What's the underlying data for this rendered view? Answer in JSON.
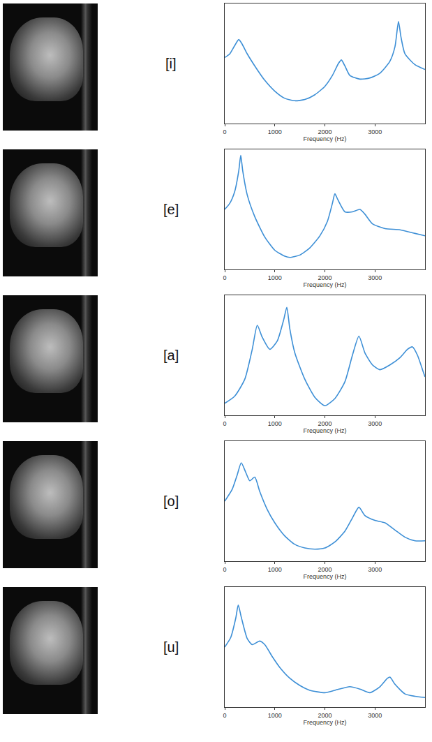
{
  "chart_data": [
    {
      "type": "line",
      "title": "[i]",
      "xlabel": "Frequency (Hz)",
      "color": "#3d8fd6",
      "grid": false,
      "tick_labels": "x",
      "xlim": [
        0,
        4000
      ],
      "xticks": [
        0,
        1000,
        2000,
        3000
      ],
      "ylim": [
        0,
        100
      ],
      "x": [
        0,
        100,
        200,
        280,
        350,
        450,
        600,
        800,
        1000,
        1200,
        1400,
        1600,
        1800,
        2000,
        2150,
        2270,
        2330,
        2400,
        2500,
        2700,
        2900,
        3100,
        3300,
        3400,
        3470,
        3520,
        3600,
        3800,
        4000
      ],
      "values": [
        55,
        58,
        65,
        70,
        66,
        58,
        48,
        36,
        27,
        21,
        19,
        20,
        24,
        31,
        40,
        50,
        53,
        48,
        40,
        37,
        38,
        42,
        52,
        64,
        85,
        72,
        58,
        49,
        45
      ]
    },
    {
      "type": "line",
      "title": "[e]",
      "xlabel": "Frequency (Hz)",
      "color": "#3d8fd6",
      "grid": false,
      "tick_labels": "x",
      "xlim": [
        0,
        4000
      ],
      "xticks": [
        0,
        1000,
        2000,
        3000
      ],
      "ylim": [
        0,
        100
      ],
      "x": [
        0,
        100,
        200,
        280,
        320,
        360,
        450,
        600,
        800,
        1000,
        1200,
        1300,
        1500,
        1700,
        1900,
        2050,
        2150,
        2200,
        2260,
        2400,
        2550,
        2700,
        2800,
        2950,
        3200,
        3500,
        3800,
        4000
      ],
      "values": [
        50,
        55,
        65,
        82,
        95,
        82,
        62,
        44,
        27,
        16,
        11,
        10,
        12,
        18,
        28,
        40,
        55,
        63,
        58,
        48,
        48,
        50,
        46,
        38,
        34,
        33,
        30,
        28
      ]
    },
    {
      "type": "line",
      "title": "[a]",
      "xlabel": "Frequency (Hz)",
      "color": "#3d8fd6",
      "grid": false,
      "tick_labels": "x",
      "xlim": [
        0,
        4000
      ],
      "xticks": [
        0,
        1000,
        2000,
        3000
      ],
      "ylim": [
        0,
        100
      ],
      "x": [
        0,
        200,
        400,
        550,
        650,
        750,
        900,
        1050,
        1180,
        1240,
        1300,
        1400,
        1600,
        1800,
        2000,
        2200,
        2400,
        2550,
        2680,
        2800,
        2950,
        3100,
        3300,
        3500,
        3650,
        3750,
        3850,
        3950,
        4000
      ],
      "values": [
        10,
        16,
        30,
        55,
        75,
        65,
        55,
        62,
        80,
        90,
        72,
        52,
        30,
        15,
        8,
        14,
        28,
        50,
        66,
        52,
        42,
        38,
        42,
        48,
        55,
        57,
        50,
        38,
        32
      ]
    },
    {
      "type": "line",
      "title": "[o]",
      "xlabel": "Frequency (Hz)",
      "color": "#3d8fd6",
      "grid": false,
      "tick_labels": "x",
      "xlim": [
        0,
        4000
      ],
      "xticks": [
        0,
        1000,
        2000,
        3000
      ],
      "ylim": [
        0,
        100
      ],
      "x": [
        0,
        150,
        250,
        330,
        420,
        500,
        600,
        700,
        850,
        1000,
        1200,
        1400,
        1600,
        1800,
        2000,
        2200,
        2400,
        2550,
        2680,
        2800,
        3000,
        3200,
        3400,
        3600,
        3800,
        4000
      ],
      "values": [
        50,
        60,
        72,
        82,
        74,
        67,
        70,
        58,
        43,
        32,
        21,
        14,
        11,
        10,
        11,
        16,
        25,
        36,
        45,
        38,
        34,
        32,
        26,
        20,
        17,
        17
      ]
    },
    {
      "type": "line",
      "title": "[u]",
      "xlabel": "Frequency (Hz)",
      "color": "#3d8fd6",
      "grid": false,
      "tick_labels": "x",
      "xlim": [
        0,
        4000
      ],
      "xticks": [
        0,
        1000,
        2000,
        3000
      ],
      "ylim": [
        0,
        100
      ],
      "x": [
        0,
        120,
        220,
        270,
        330,
        450,
        550,
        700,
        800,
        950,
        1100,
        1300,
        1500,
        1700,
        2000,
        2200,
        2500,
        2700,
        2900,
        3100,
        3250,
        3300,
        3400,
        3600,
        3800,
        4000
      ],
      "values": [
        50,
        58,
        74,
        85,
        75,
        57,
        52,
        55,
        52,
        42,
        33,
        24,
        18,
        14,
        12,
        14,
        17,
        15,
        12,
        17,
        24,
        25,
        19,
        11,
        9,
        8
      ]
    }
  ]
}
